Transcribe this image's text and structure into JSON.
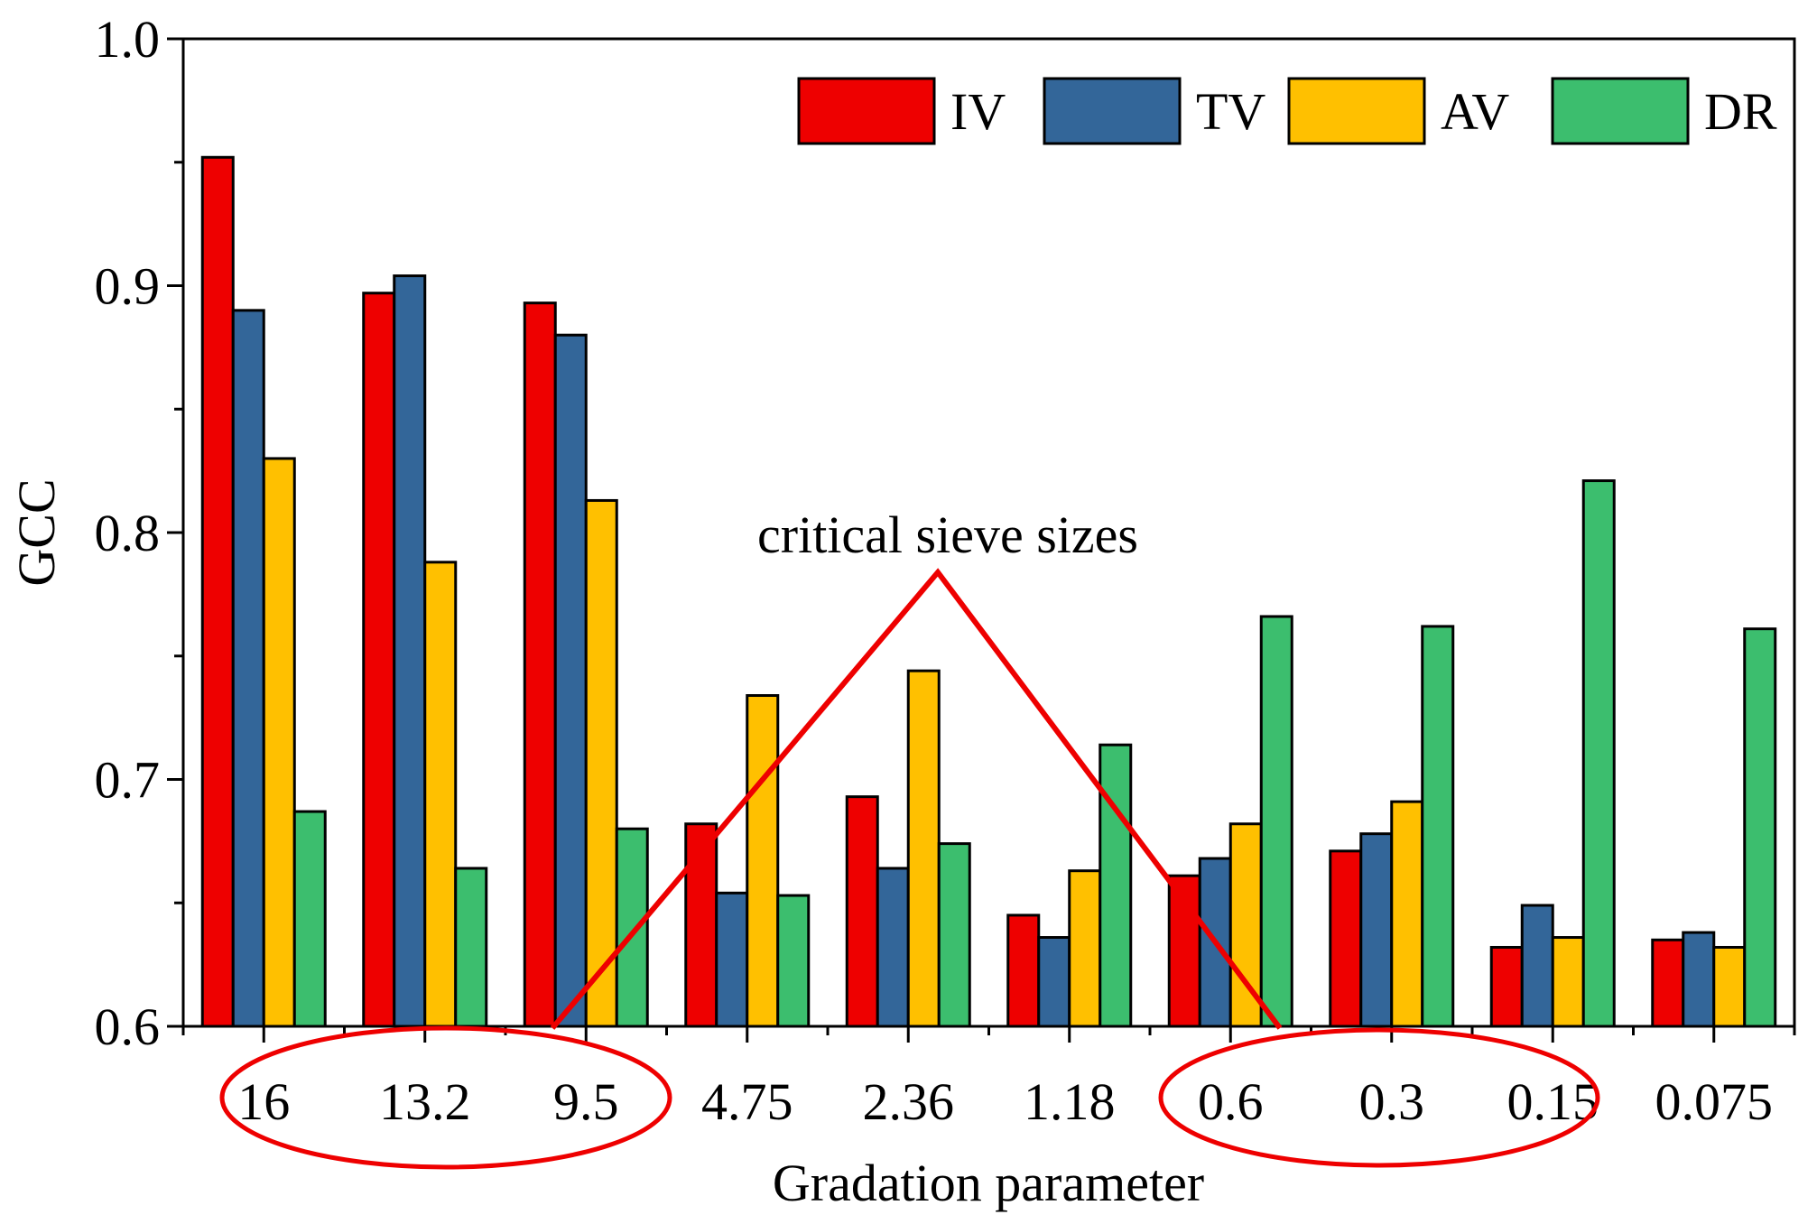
{
  "chart_data": {
    "type": "bar",
    "title": "",
    "xlabel": "Gradation parameter",
    "ylabel": "GCC",
    "ylim": [
      0.6,
      1.0
    ],
    "yticks": [
      "0.6",
      "0.7",
      "0.8",
      "0.9",
      "1.0"
    ],
    "categories": [
      "16",
      "13.2",
      "9.5",
      "4.75",
      "2.36",
      "1.18",
      "0.6",
      "0.3",
      "0.15",
      "0.075"
    ],
    "series": [
      {
        "name": "IV",
        "color": "#ee0000",
        "values": [
          0.952,
          0.897,
          0.893,
          0.682,
          0.693,
          0.645,
          0.661,
          0.671,
          0.632,
          0.635
        ]
      },
      {
        "name": "TV",
        "color": "#336699",
        "values": [
          0.89,
          0.904,
          0.88,
          0.654,
          0.664,
          0.636,
          0.668,
          0.678,
          0.649,
          0.638
        ]
      },
      {
        "name": "AV",
        "color": "#ffc000",
        "values": [
          0.83,
          0.788,
          0.813,
          0.734,
          0.744,
          0.663,
          0.682,
          0.691,
          0.636,
          0.632
        ]
      },
      {
        "name": "DR",
        "color": "#3cbe6e",
        "values": [
          0.687,
          0.664,
          0.68,
          0.653,
          0.674,
          0.714,
          0.766,
          0.762,
          0.821,
          0.761
        ]
      }
    ],
    "legend_position": "top-right",
    "annotation": {
      "text": "critical sieve sizes",
      "color": "#ee0000",
      "highlighted_groups": [
        [
          "16",
          "13.2",
          "9.5"
        ],
        [
          "0.6",
          "0.3",
          "0.15"
        ]
      ]
    }
  }
}
